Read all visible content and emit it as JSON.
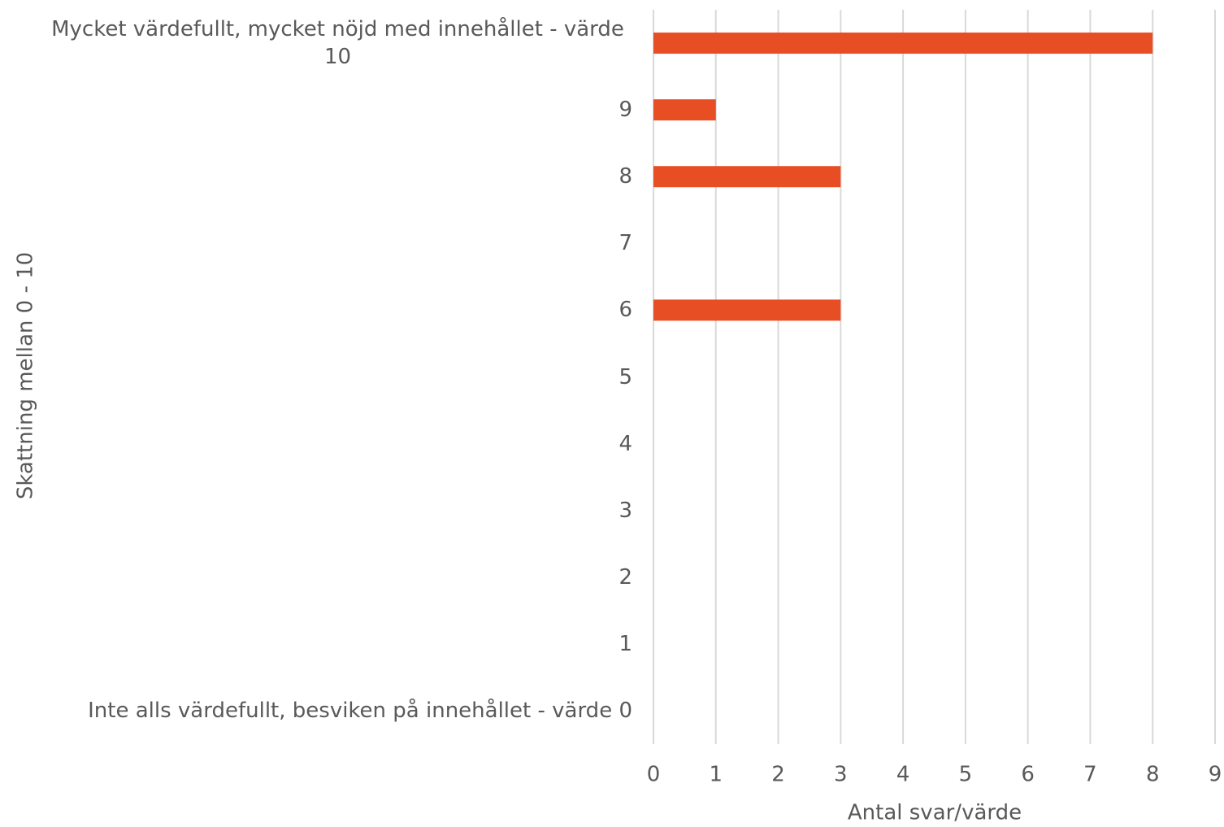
{
  "chart_data": {
    "type": "bar",
    "orientation": "horizontal",
    "x_label": "Antal svar/värde",
    "y_label": "Skattning mellan 0 - 10",
    "categories": [
      "Mycket värdefullt, mycket nöjd med innehållet - värde 10",
      "9",
      "8",
      "7",
      "6",
      "5",
      "4",
      "3",
      "2",
      "1",
      "Inte alls värdefullt, besviken på innehållet - värde 0"
    ],
    "values": [
      8,
      1,
      3,
      0,
      3,
      0,
      0,
      0,
      0,
      0,
      0
    ],
    "color": "#e84e24",
    "xlim": [
      0,
      9
    ],
    "xticks": [
      0,
      1,
      2,
      3,
      4,
      5,
      6,
      7,
      8,
      9
    ],
    "grid": true
  }
}
